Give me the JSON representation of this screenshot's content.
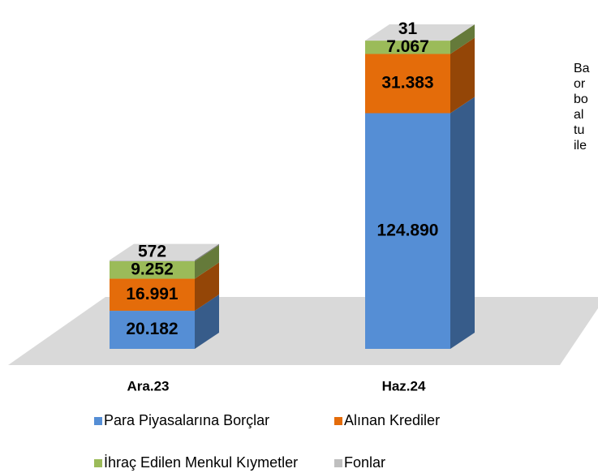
{
  "chart_data": {
    "type": "bar3d_stacked",
    "categories": [
      "Ara.23",
      "Haz.24"
    ],
    "series": [
      {
        "name": "Para Piyasalarına Borçlar",
        "color": "#558ed5",
        "values": [
          20182,
          124890
        ],
        "value_labels": [
          "20.182",
          "124.890"
        ]
      },
      {
        "name": "Alınan Krediler",
        "color": "#e46c0a",
        "values": [
          16991,
          31383
        ],
        "value_labels": [
          "16.991",
          "31.383"
        ]
      },
      {
        "name": "İhraç Edilen Menkul Kıymetler",
        "color": "#9bbb59",
        "values": [
          9252,
          7067
        ],
        "value_labels": [
          "9.252",
          "7.067"
        ]
      },
      {
        "name": "Fonlar",
        "color": "#bfbfbf",
        "values": [
          572,
          31
        ],
        "value_labels": [
          "572",
          "31"
        ]
      }
    ],
    "side_text": [
      "Ba",
      "or",
      "bo",
      "al",
      "tu",
      "ile"
    ]
  }
}
